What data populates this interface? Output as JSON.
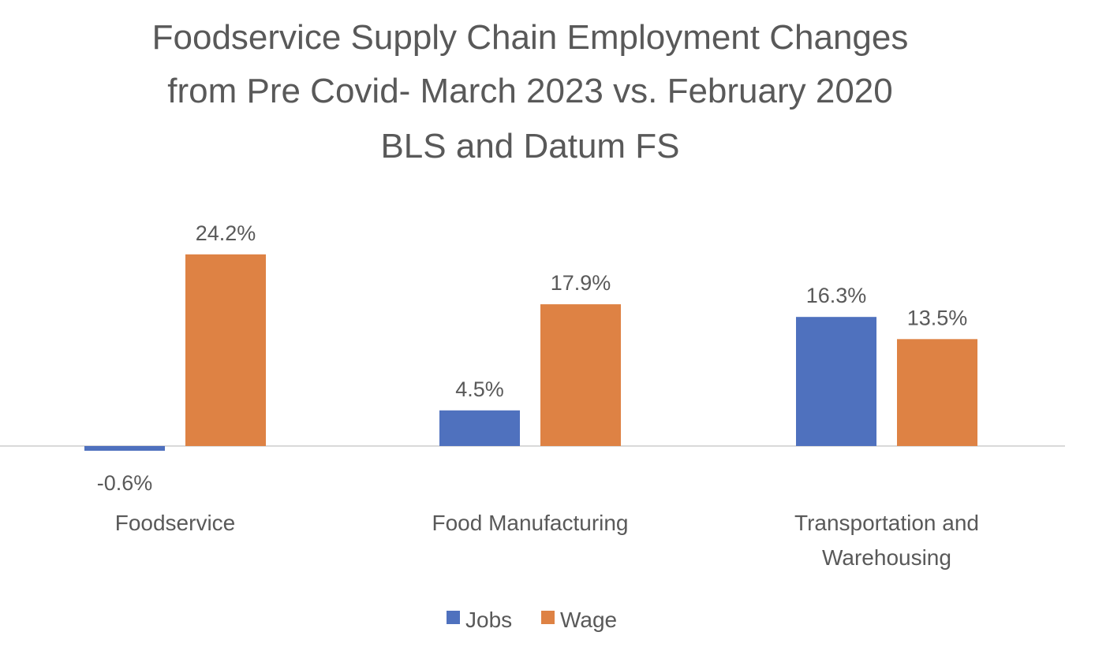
{
  "chart_data": {
    "type": "bar",
    "title_lines": [
      "Foodservice Supply Chain Employment Changes",
      "from Pre Covid- March 2023 vs. February 2020",
      "BLS and Datum FS"
    ],
    "categories": [
      [
        "Foodservice"
      ],
      [
        "Food Manufacturing"
      ],
      [
        "Transportation and",
        "Warehousing"
      ]
    ],
    "series": [
      {
        "name": "Jobs",
        "color": "#4f71be",
        "values": [
          -0.6,
          4.5,
          16.3
        ],
        "labels": [
          "-0.6%",
          "4.5%",
          "16.3%"
        ]
      },
      {
        "name": "Wage",
        "color": "#de8244",
        "values": [
          24.2,
          17.9,
          13.5
        ],
        "labels": [
          "24.2%",
          "17.9%",
          "13.5%"
        ]
      }
    ],
    "value_unit": "%",
    "ylim": [
      -1,
      25
    ],
    "xlabel": "",
    "ylabel": "",
    "grid": false,
    "legend_position": "bottom"
  }
}
